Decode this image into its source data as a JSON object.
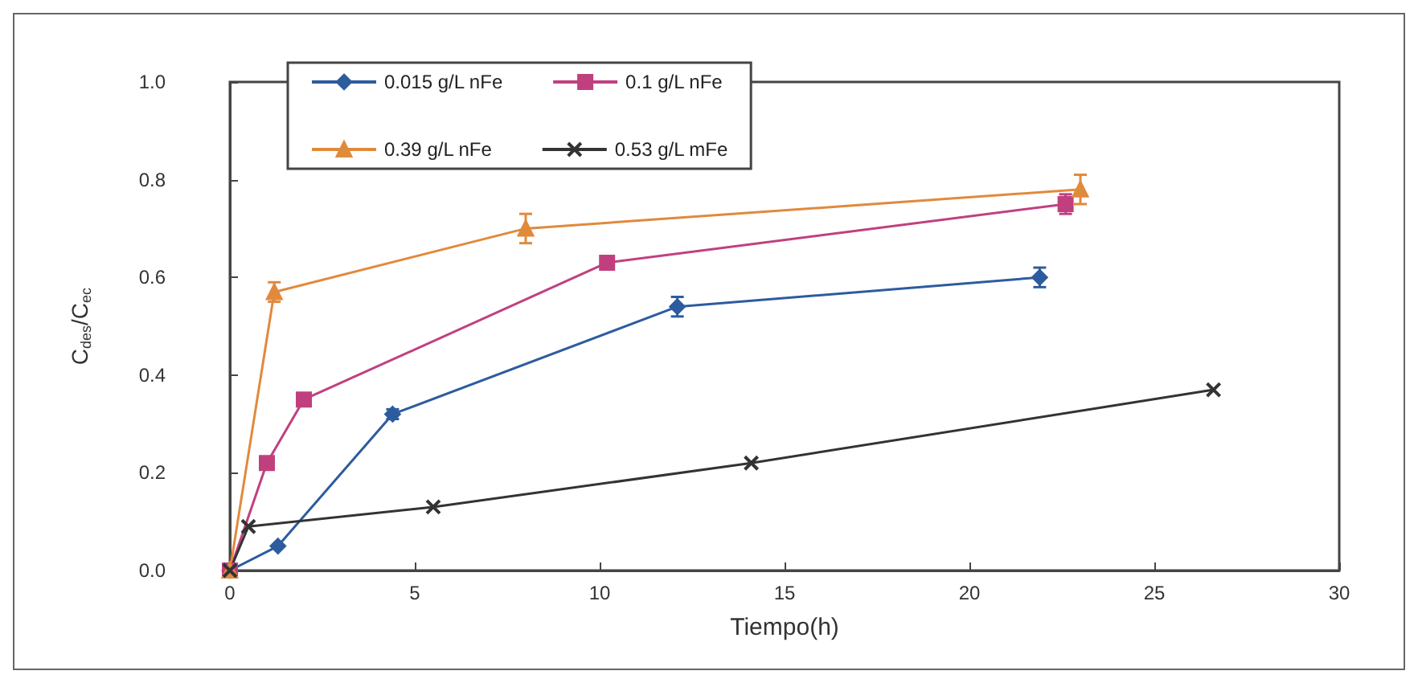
{
  "chart_data": {
    "type": "line",
    "xlabel": "Tiempo(h)",
    "ylabel": "C$_{des}$/C$_{ec}$",
    "xlim": [
      0,
      30
    ],
    "xticks": [
      0,
      5,
      10,
      15,
      20,
      25,
      30
    ],
    "ylim": [
      0,
      1
    ],
    "yticks": [
      {
        "value": 0,
        "label": "0.0"
      },
      {
        "value": 0.2,
        "label": "0.2"
      },
      {
        "value": 0.4,
        "label": "0.4"
      },
      {
        "value": 0.6,
        "label": "0.6"
      },
      {
        "value": 0.8,
        "label": "0.8"
      },
      {
        "value": 1,
        "label": "1.0"
      }
    ],
    "grid": false,
    "legend": "top left",
    "series": [
      {
        "name": "0.015 g/L nFe",
        "color": "#2d5c9e",
        "marker": "diamond",
        "x": [
          0,
          1.3,
          4.4,
          12.1,
          21.9
        ],
        "values": [
          0,
          0.05,
          0.32,
          0.54,
          0.6
        ],
        "errors": [
          null,
          null,
          0.01,
          0.02,
          0.02
        ]
      },
      {
        "name": "0.1 g/L nFe",
        "color": "#c0407f",
        "marker": "square",
        "x": [
          0,
          1.0,
          2.0,
          10.2,
          22.6
        ],
        "values": [
          0,
          0.22,
          0.35,
          0.63,
          0.75
        ],
        "errors": [
          null,
          null,
          null,
          null,
          0.02
        ]
      },
      {
        "name": "0.39 g/L nFe",
        "color": "#e08a3c",
        "marker": "triangle",
        "x": [
          0,
          1.2,
          8,
          23
        ],
        "values": [
          0,
          0.57,
          0.7,
          0.78
        ],
        "errors": [
          null,
          0.02,
          0.03,
          0.03
        ]
      },
      {
        "name": "0.53 g/L mFe",
        "color": "#333333",
        "marker": "cross",
        "x": [
          0,
          0.5,
          5.5,
          14.1,
          26.6
        ],
        "values": [
          0,
          0.09,
          0.13,
          0.22,
          0.37
        ]
      }
    ]
  }
}
